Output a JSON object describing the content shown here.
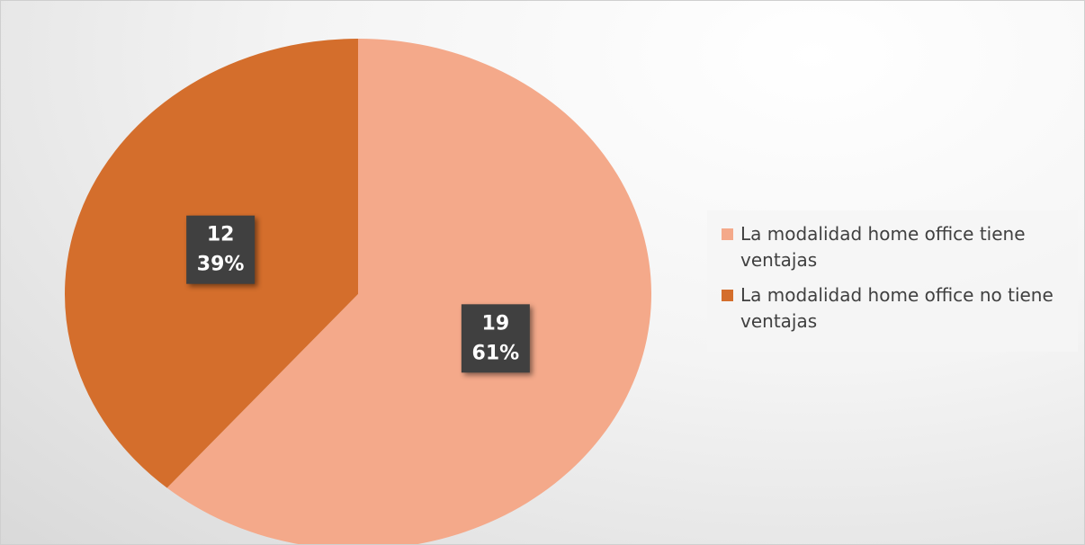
{
  "chart_data": {
    "type": "pie",
    "categories": [
      "La modalidad home office tiene ventajas",
      "La modalidad home office no tiene ventajas"
    ],
    "values": [
      19,
      12
    ],
    "percent_labels": [
      "61%",
      "39%"
    ],
    "colors": [
      "#f4a98a",
      "#d46e2c"
    ],
    "legend": "right"
  }
}
